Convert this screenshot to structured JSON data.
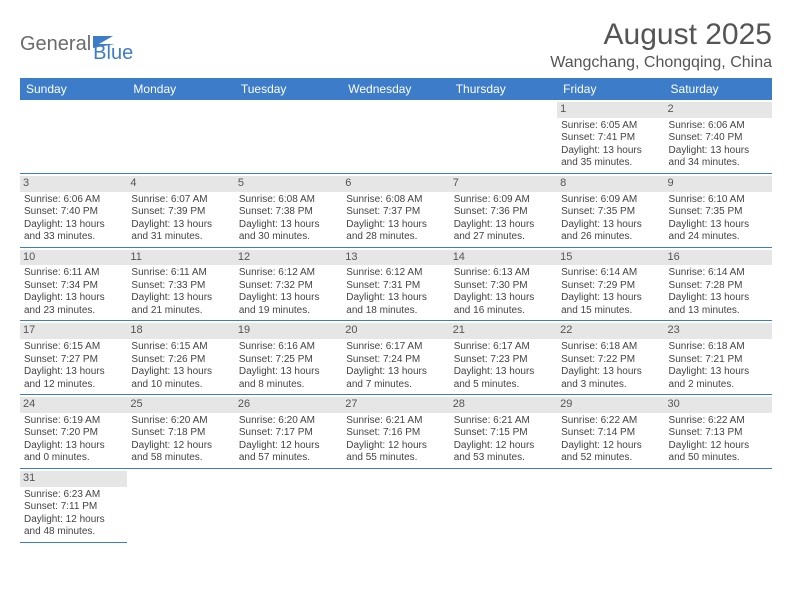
{
  "logo": {
    "text1": "General",
    "text2": "Blue"
  },
  "title": "August 2025",
  "location": "Wangchang, Chongqing, China",
  "day_headers": [
    "Sunday",
    "Monday",
    "Tuesday",
    "Wednesday",
    "Thursday",
    "Friday",
    "Saturday"
  ],
  "colors": {
    "header_bg": "#3d7cc9",
    "header_text": "#ffffff",
    "daynum_bg": "#e6e6e6",
    "rule": "#3d7cc9",
    "body_text": "#444444",
    "title_text": "#555555",
    "logo_gray": "#6b6b6b",
    "logo_blue": "#3d7cc9"
  },
  "weeks": [
    [
      null,
      null,
      null,
      null,
      null,
      {
        "n": "1",
        "sr": "Sunrise: 6:05 AM",
        "ss": "Sunset: 7:41 PM",
        "dl": "Daylight: 13 hours and 35 minutes."
      },
      {
        "n": "2",
        "sr": "Sunrise: 6:06 AM",
        "ss": "Sunset: 7:40 PM",
        "dl": "Daylight: 13 hours and 34 minutes."
      }
    ],
    [
      {
        "n": "3",
        "sr": "Sunrise: 6:06 AM",
        "ss": "Sunset: 7:40 PM",
        "dl": "Daylight: 13 hours and 33 minutes."
      },
      {
        "n": "4",
        "sr": "Sunrise: 6:07 AM",
        "ss": "Sunset: 7:39 PM",
        "dl": "Daylight: 13 hours and 31 minutes."
      },
      {
        "n": "5",
        "sr": "Sunrise: 6:08 AM",
        "ss": "Sunset: 7:38 PM",
        "dl": "Daylight: 13 hours and 30 minutes."
      },
      {
        "n": "6",
        "sr": "Sunrise: 6:08 AM",
        "ss": "Sunset: 7:37 PM",
        "dl": "Daylight: 13 hours and 28 minutes."
      },
      {
        "n": "7",
        "sr": "Sunrise: 6:09 AM",
        "ss": "Sunset: 7:36 PM",
        "dl": "Daylight: 13 hours and 27 minutes."
      },
      {
        "n": "8",
        "sr": "Sunrise: 6:09 AM",
        "ss": "Sunset: 7:35 PM",
        "dl": "Daylight: 13 hours and 26 minutes."
      },
      {
        "n": "9",
        "sr": "Sunrise: 6:10 AM",
        "ss": "Sunset: 7:35 PM",
        "dl": "Daylight: 13 hours and 24 minutes."
      }
    ],
    [
      {
        "n": "10",
        "sr": "Sunrise: 6:11 AM",
        "ss": "Sunset: 7:34 PM",
        "dl": "Daylight: 13 hours and 23 minutes."
      },
      {
        "n": "11",
        "sr": "Sunrise: 6:11 AM",
        "ss": "Sunset: 7:33 PM",
        "dl": "Daylight: 13 hours and 21 minutes."
      },
      {
        "n": "12",
        "sr": "Sunrise: 6:12 AM",
        "ss": "Sunset: 7:32 PM",
        "dl": "Daylight: 13 hours and 19 minutes."
      },
      {
        "n": "13",
        "sr": "Sunrise: 6:12 AM",
        "ss": "Sunset: 7:31 PM",
        "dl": "Daylight: 13 hours and 18 minutes."
      },
      {
        "n": "14",
        "sr": "Sunrise: 6:13 AM",
        "ss": "Sunset: 7:30 PM",
        "dl": "Daylight: 13 hours and 16 minutes."
      },
      {
        "n": "15",
        "sr": "Sunrise: 6:14 AM",
        "ss": "Sunset: 7:29 PM",
        "dl": "Daylight: 13 hours and 15 minutes."
      },
      {
        "n": "16",
        "sr": "Sunrise: 6:14 AM",
        "ss": "Sunset: 7:28 PM",
        "dl": "Daylight: 13 hours and 13 minutes."
      }
    ],
    [
      {
        "n": "17",
        "sr": "Sunrise: 6:15 AM",
        "ss": "Sunset: 7:27 PM",
        "dl": "Daylight: 13 hours and 12 minutes."
      },
      {
        "n": "18",
        "sr": "Sunrise: 6:15 AM",
        "ss": "Sunset: 7:26 PM",
        "dl": "Daylight: 13 hours and 10 minutes."
      },
      {
        "n": "19",
        "sr": "Sunrise: 6:16 AM",
        "ss": "Sunset: 7:25 PM",
        "dl": "Daylight: 13 hours and 8 minutes."
      },
      {
        "n": "20",
        "sr": "Sunrise: 6:17 AM",
        "ss": "Sunset: 7:24 PM",
        "dl": "Daylight: 13 hours and 7 minutes."
      },
      {
        "n": "21",
        "sr": "Sunrise: 6:17 AM",
        "ss": "Sunset: 7:23 PM",
        "dl": "Daylight: 13 hours and 5 minutes."
      },
      {
        "n": "22",
        "sr": "Sunrise: 6:18 AM",
        "ss": "Sunset: 7:22 PM",
        "dl": "Daylight: 13 hours and 3 minutes."
      },
      {
        "n": "23",
        "sr": "Sunrise: 6:18 AM",
        "ss": "Sunset: 7:21 PM",
        "dl": "Daylight: 13 hours and 2 minutes."
      }
    ],
    [
      {
        "n": "24",
        "sr": "Sunrise: 6:19 AM",
        "ss": "Sunset: 7:20 PM",
        "dl": "Daylight: 13 hours and 0 minutes."
      },
      {
        "n": "25",
        "sr": "Sunrise: 6:20 AM",
        "ss": "Sunset: 7:18 PM",
        "dl": "Daylight: 12 hours and 58 minutes."
      },
      {
        "n": "26",
        "sr": "Sunrise: 6:20 AM",
        "ss": "Sunset: 7:17 PM",
        "dl": "Daylight: 12 hours and 57 minutes."
      },
      {
        "n": "27",
        "sr": "Sunrise: 6:21 AM",
        "ss": "Sunset: 7:16 PM",
        "dl": "Daylight: 12 hours and 55 minutes."
      },
      {
        "n": "28",
        "sr": "Sunrise: 6:21 AM",
        "ss": "Sunset: 7:15 PM",
        "dl": "Daylight: 12 hours and 53 minutes."
      },
      {
        "n": "29",
        "sr": "Sunrise: 6:22 AM",
        "ss": "Sunset: 7:14 PM",
        "dl": "Daylight: 12 hours and 52 minutes."
      },
      {
        "n": "30",
        "sr": "Sunrise: 6:22 AM",
        "ss": "Sunset: 7:13 PM",
        "dl": "Daylight: 12 hours and 50 minutes."
      }
    ],
    [
      {
        "n": "31",
        "sr": "Sunrise: 6:23 AM",
        "ss": "Sunset: 7:11 PM",
        "dl": "Daylight: 12 hours and 48 minutes."
      },
      null,
      null,
      null,
      null,
      null,
      null
    ]
  ]
}
